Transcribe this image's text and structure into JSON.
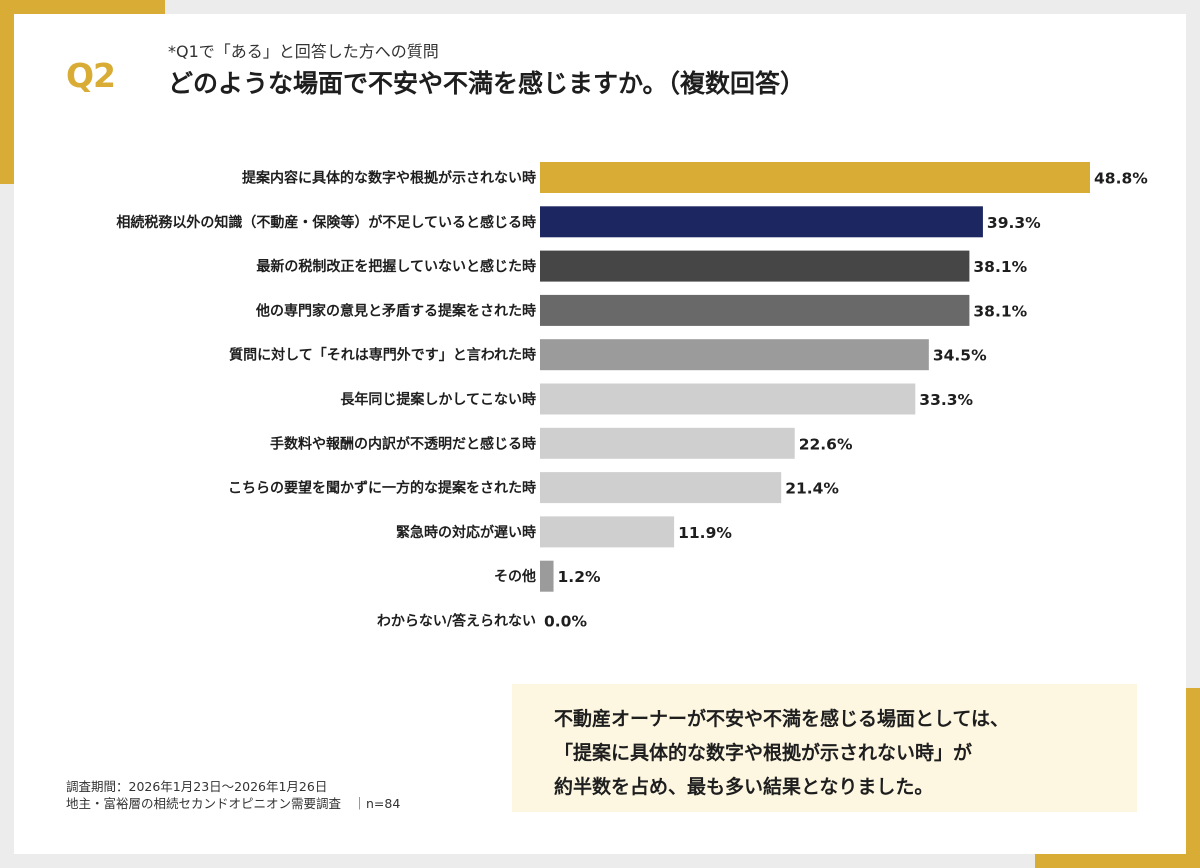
{
  "header": {
    "q_label": "Q2",
    "sub_question": "*Q1で「ある」と回答した方への質問",
    "title": "どのような場面で不安や不満を感じますか。（複数回答）"
  },
  "chart_data": {
    "type": "bar",
    "orientation": "horizontal",
    "unit": "%",
    "categories": [
      "提案内容に具体的な数字や根拠が示されない時",
      "相続税務以外の知識（不動産・保険等）が不足していると感じる時",
      "最新の税制改正を把握していないと感じた時",
      "他の専門家の意見と矛盾する提案をされた時",
      "質問に対して「それは専門外です」と言われた時",
      "長年同じ提案しかしてこない時",
      "手数料や報酬の内訳が不透明だと感じる時",
      "こちらの要望を聞かずに一方的な提案をされた時",
      "緊急時の対応が遅い時",
      "その他",
      "わからない/答えられない"
    ],
    "values": [
      48.8,
      39.3,
      38.1,
      38.1,
      34.5,
      33.3,
      22.6,
      21.4,
      11.9,
      1.2,
      0.0
    ],
    "value_labels": [
      "48.8%",
      "39.3%",
      "38.1%",
      "38.1%",
      "34.5%",
      "33.3%",
      "22.6%",
      "21.4%",
      "11.9%",
      "1.2%",
      "0.0%"
    ],
    "colors": [
      "#d8ac35",
      "#1c2762",
      "#464646",
      "#696969",
      "#9b9b9b",
      "#cfcfcf",
      "#cfcfcf",
      "#cfcfcf",
      "#cfcfcf",
      "#9b9b9b",
      "#cfcfcf"
    ],
    "xlim": [
      0,
      48.8
    ],
    "title": "",
    "xlabel": "",
    "ylabel": "",
    "grid": false,
    "legend": "none"
  },
  "summary": {
    "lines": [
      "不動産オーナーが不安や不満を感じる場面としては、",
      "「提案に具体的な数字や根拠が示されない時」が",
      "約半数を占め、最も多い結果となりました。"
    ]
  },
  "footnote": {
    "line1": "調査期間：2026年1月23日～2026年1月26日",
    "line2": "地主・富裕層の相続セカンドオピニオン需要調査　｜n=84"
  },
  "colors": {
    "accent": "#d8ac35",
    "navy": "#1c2762"
  }
}
